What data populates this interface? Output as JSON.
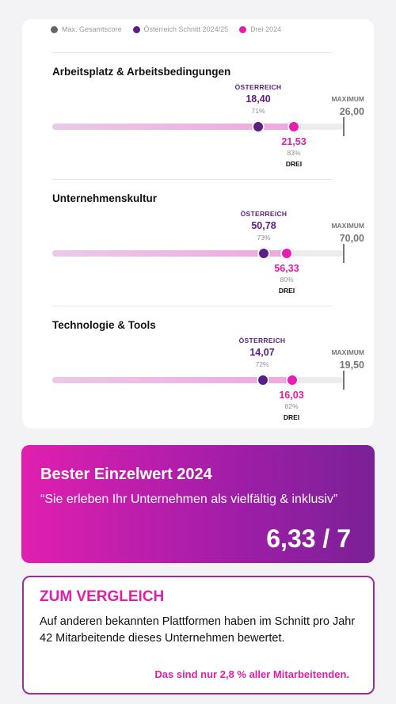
{
  "legend": [
    {
      "label": "Max. Gesamtscore",
      "color": "#666666"
    },
    {
      "label": "Österreich Schnitt 2024/25",
      "color": "#5a1f86"
    },
    {
      "label": "Drei 2024",
      "color": "#e01fa8"
    }
  ],
  "sections": [
    {
      "title": "Arbeitsplatz & Arbeitsbedingungen",
      "at_label": "ÖSTERREICH",
      "at_value": "18,40",
      "at_pct": "71%",
      "drei_value": "21,53",
      "drei_pct": "83%",
      "drei_label": "DREI",
      "max_label": "MAXIMUM",
      "max_value": "26,00"
    },
    {
      "title": "Unternehmenskultur",
      "at_label": "ÖSTERREICH",
      "at_value": "50,78",
      "at_pct": "73%",
      "drei_value": "56,33",
      "drei_pct": "80%",
      "drei_label": "DREI",
      "max_label": "MAXIMUM",
      "max_value": "70,00"
    },
    {
      "title": "Technologie & Tools",
      "at_label": "ÖSTERREICH",
      "at_value": "14,07",
      "at_pct": "72%",
      "drei_value": "16,03",
      "drei_pct": "82%",
      "drei_label": "DREI",
      "max_label": "MAXIMUM",
      "max_value": "19,50"
    }
  ],
  "best": {
    "title": "Bester Einzelwert 2024",
    "quote": "“Sie erleben Ihr Unternehmen als vielfältig & inklusiv”",
    "score": "6,33 / 7"
  },
  "compare": {
    "title": "ZUM VERGLEICH",
    "text": "Auf anderen bekannten Plattformen haben im Schnitt pro Jahr 42 Mitarbeitende dieses Unternehmen bewertet.",
    "note": "Das sind nur 2,8 % aller Mitarbeitenden."
  }
}
